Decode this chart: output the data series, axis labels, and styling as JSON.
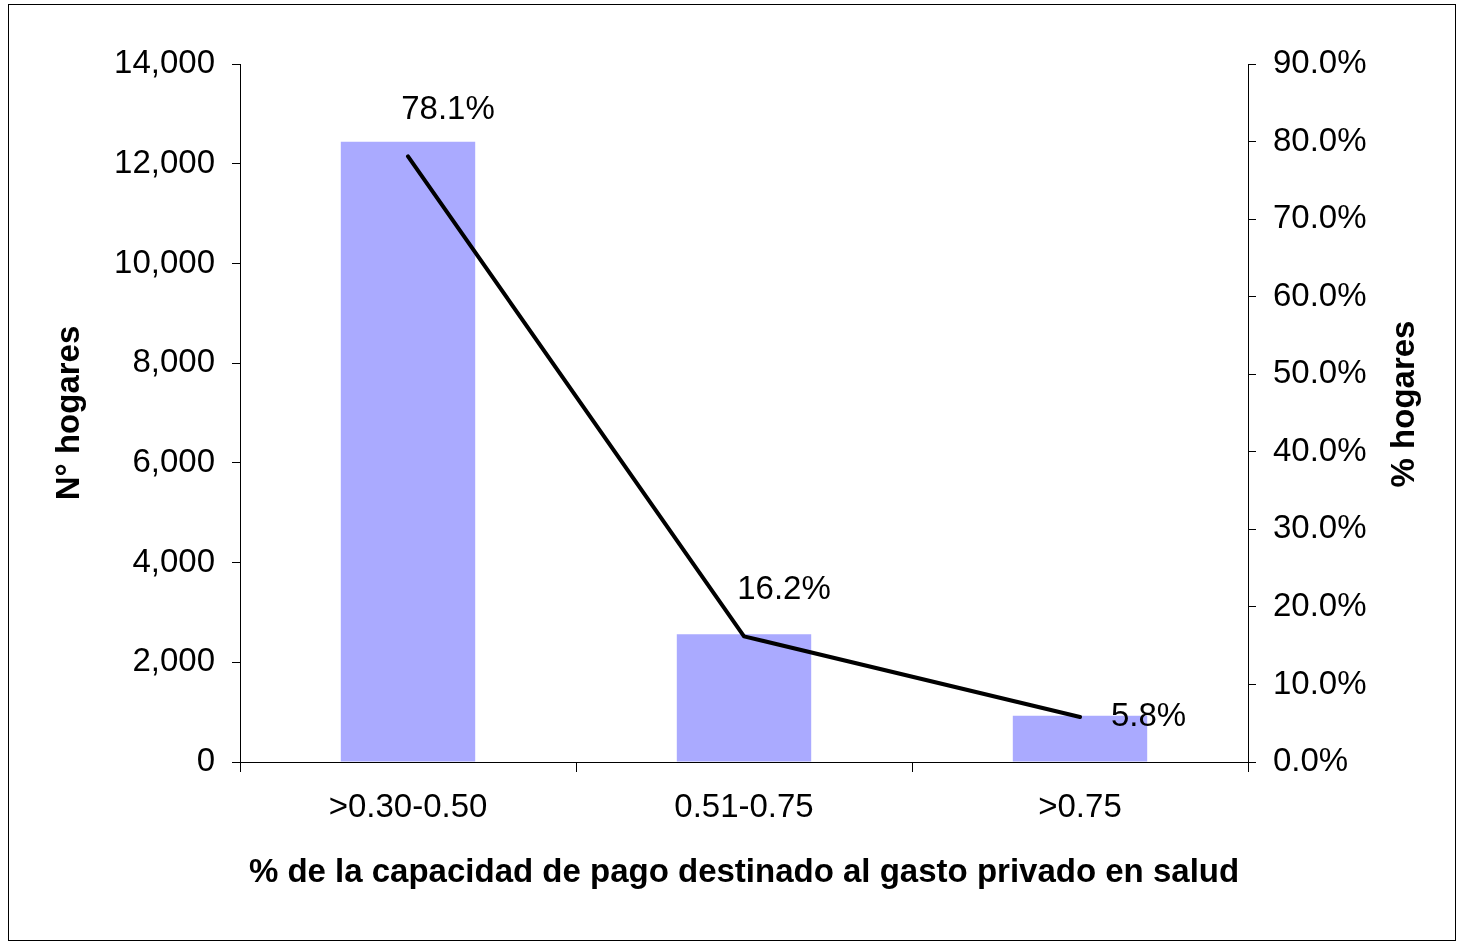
{
  "chart_data": {
    "type": "bar",
    "xlabel": "% de la capacidad de pago destinado al gasto privado en salud",
    "ylabel": "N° hogares",
    "y2label": "% hogares",
    "categories": [
      ">0.30-0.50",
      "0.51-0.75",
      ">0.75"
    ],
    "series": [
      {
        "color": "#aaaaff",
        "values": [
          12440,
          2560,
          930
        ]
      },
      {
        "type": "line",
        "axis": "y2",
        "color": "#000000",
        "values": [
          78.1,
          16.2,
          5.8
        ],
        "value_labels": [
          "78.1%",
          "16.2%",
          "5.8%"
        ]
      }
    ],
    "ylim": [
      0,
      14000
    ],
    "yticks": [
      {
        "value": 0,
        "label": "0"
      },
      {
        "value": 2000,
        "label": "2,000"
      },
      {
        "value": 4000,
        "label": "4,000"
      },
      {
        "value": 6000,
        "label": "6,000"
      },
      {
        "value": 8000,
        "label": "8,000"
      },
      {
        "value": 10000,
        "label": "10,000"
      },
      {
        "value": 12000,
        "label": "12,000"
      },
      {
        "value": 14000,
        "label": "14,000"
      }
    ],
    "y2lim": [
      0,
      90
    ],
    "y2ticks": [
      {
        "value": 0,
        "label": "0.0%"
      },
      {
        "value": 10,
        "label": "10.0%"
      },
      {
        "value": 20,
        "label": "20.0%"
      },
      {
        "value": 30,
        "label": "30.0%"
      },
      {
        "value": 40,
        "label": "40.0%"
      },
      {
        "value": 50,
        "label": "50.0%"
      },
      {
        "value": 60,
        "label": "60.0%"
      },
      {
        "value": 70,
        "label": "70.0%"
      },
      {
        "value": 80,
        "label": "80.0%"
      },
      {
        "value": 90,
        "label": "90.0%"
      }
    ],
    "marker": "none",
    "grid": false,
    "legend": false
  }
}
